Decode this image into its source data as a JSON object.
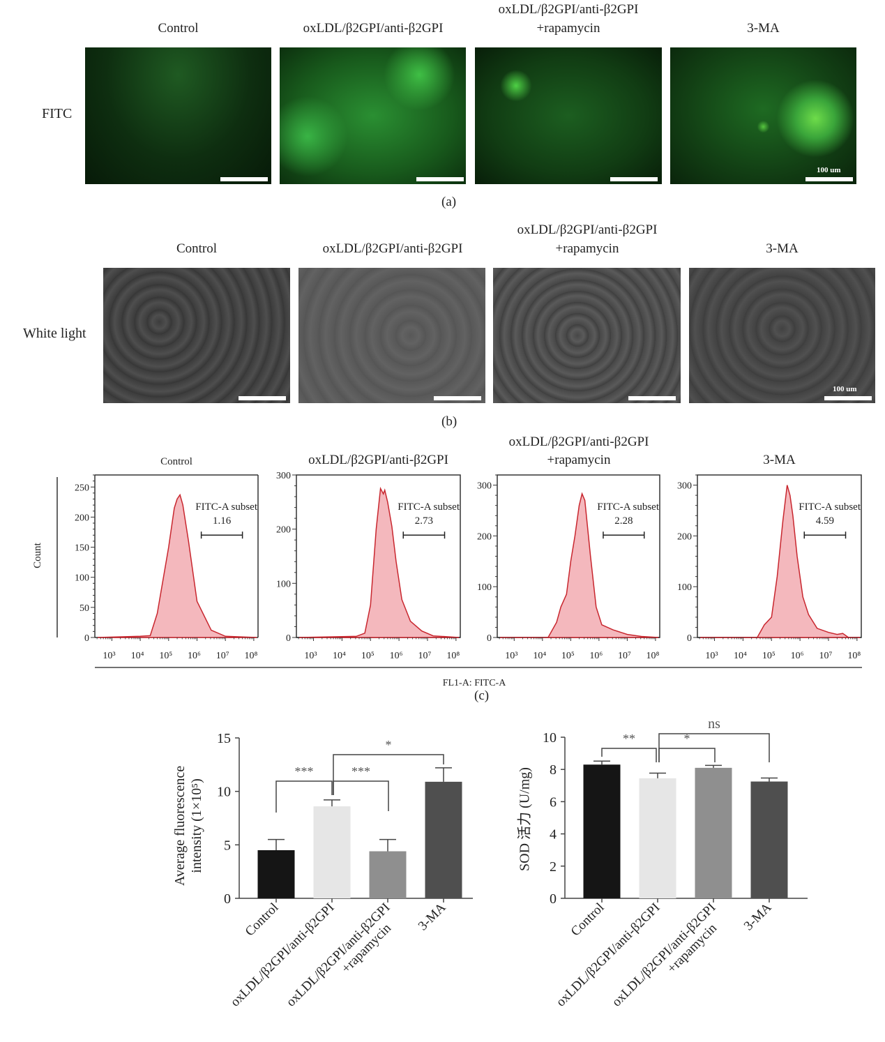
{
  "groups": [
    "Control",
    "oxLDL/β2GPI/anti-β2GPI",
    "oxLDL/β2GPI/anti-β2GPI\n+rapamycin",
    "3-MA"
  ],
  "group_line1": [
    "Control",
    "oxLDL/β2GPI/anti-β2GPI",
    "oxLDL/β2GPI/anti-β2GPI",
    "3-MA"
  ],
  "group_line2": [
    "",
    "",
    "+rapamycin",
    ""
  ],
  "panel_a": {
    "letter": "(a)",
    "row_label": "FITC",
    "scale_label": "100 um",
    "image_color": "#1f8a2a"
  },
  "panel_b": {
    "letter": "(b)",
    "row_label": "White light",
    "scale_label": "100 um"
  },
  "panel_c": {
    "letter": "(c)",
    "ylabel": "Count",
    "xlabel": "FL1-A: FITC-A",
    "gate_label": "FITC-A subset",
    "fill_color": "#f4b8bd",
    "line_color": "#c8262e"
  },
  "panel_d": {
    "ylabel_line1": "Average fluorescence",
    "ylabel_line2": "intensity (1×10⁵)"
  },
  "panel_e": {
    "ylabel": "SOD 活力 (U/mg)"
  },
  "chart_data": [
    {
      "type": "area",
      "title": "Control",
      "xlabel": "FL1-A: FITC-A",
      "ylabel": "Count",
      "xscale": "log",
      "xticks": [
        "10³",
        "10⁴",
        "10⁵",
        "10⁶",
        "10⁷",
        "10⁸"
      ],
      "yticks": [
        0,
        50,
        100,
        150,
        200,
        250
      ],
      "ylim": [
        0,
        270
      ],
      "gate": {
        "label": "FITC-A subset",
        "value": "1.16",
        "range": [
          "1.4×10⁶",
          "4×10⁷"
        ]
      },
      "peak": {
        "x": "2×10⁵",
        "y": 237
      },
      "x_log": [
        2.5,
        4.0,
        4.35,
        4.6,
        5.0,
        5.2,
        5.3,
        5.4,
        5.5,
        5.7,
        6.0,
        6.5,
        7.0,
        8.1
      ],
      "y": [
        0,
        2,
        3,
        40,
        150,
        215,
        230,
        237,
        220,
        160,
        60,
        12,
        2,
        0
      ]
    },
    {
      "type": "area",
      "title": "oxLDL/β2GPI/anti-β2GPI",
      "xlabel": "FL1-A: FITC-A",
      "ylabel": "Count",
      "xscale": "log",
      "xticks": [
        "10³",
        "10⁴",
        "10⁵",
        "10⁶",
        "10⁷",
        "10⁸"
      ],
      "yticks": [
        0,
        100,
        200,
        300
      ],
      "ylim": [
        0,
        300
      ],
      "gate": {
        "label": "FITC-A subset",
        "value": "2.73",
        "range": [
          "1.4×10⁶",
          "4×10⁷"
        ]
      },
      "peak": {
        "x": "2.5×10⁵",
        "y": 275
      },
      "x_log": [
        2.5,
        4.5,
        4.8,
        5.0,
        5.2,
        5.35,
        5.45,
        5.5,
        5.6,
        5.75,
        5.9,
        6.1,
        6.4,
        6.8,
        7.2,
        8.1
      ],
      "y": [
        0,
        2,
        8,
        60,
        200,
        275,
        265,
        272,
        250,
        205,
        140,
        70,
        30,
        12,
        3,
        0
      ]
    },
    {
      "type": "area",
      "title": "oxLDL/β2GPI/anti-β2GPI +rapamycin",
      "xlabel": "FL1-A: FITC-A",
      "ylabel": "Count",
      "xscale": "log",
      "xticks": [
        "10³",
        "10⁴",
        "10⁵",
        "10⁶",
        "10⁷",
        "10⁸"
      ],
      "yticks": [
        0,
        100,
        200,
        300
      ],
      "ylim": [
        0,
        320
      ],
      "gate": {
        "label": "FITC-A subset",
        "value": "2.28",
        "range": [
          "1.4×10⁶",
          "4×10⁷"
        ]
      },
      "peak": {
        "x": "2.5×10⁵",
        "y": 283
      },
      "x_log": [
        2.5,
        4.2,
        4.5,
        4.65,
        4.85,
        5.0,
        5.15,
        5.3,
        5.4,
        5.5,
        5.7,
        5.9,
        6.1,
        6.5,
        7.0,
        7.5,
        8.1
      ],
      "y": [
        0,
        0,
        30,
        60,
        85,
        150,
        200,
        260,
        283,
        270,
        160,
        60,
        25,
        15,
        6,
        2,
        0
      ]
    },
    {
      "type": "area",
      "title": "3-MA",
      "xlabel": "FL1-A: FITC-A",
      "ylabel": "Count",
      "xscale": "log",
      "xticks": [
        "10³",
        "10⁴",
        "10⁵",
        "10⁶",
        "10⁷",
        "10⁸"
      ],
      "yticks": [
        0,
        100,
        200,
        300
      ],
      "ylim": [
        0,
        320
      ],
      "gate": {
        "label": "FITC-A subset",
        "value": "4.59",
        "range": [
          "1.4×10⁶",
          "4×10⁷"
        ]
      },
      "peak": {
        "x": "4×10⁵",
        "y": 302
      },
      "x_log": [
        2.5,
        4.5,
        4.75,
        5.0,
        5.2,
        5.4,
        5.55,
        5.65,
        5.75,
        5.9,
        6.1,
        6.3,
        6.6,
        7.0,
        7.3,
        7.5,
        7.7,
        8.1
      ],
      "y": [
        0,
        0,
        25,
        40,
        120,
        230,
        300,
        280,
        240,
        160,
        80,
        45,
        18,
        10,
        6,
        8,
        0,
        0
      ]
    },
    {
      "type": "bar",
      "title": "",
      "categories": [
        "Control",
        "oxLDL/β2GPI/anti-β2GPI",
        "oxLDL/β2GPI/anti-β2GPI +rapamycin",
        "3-MA"
      ],
      "values": [
        4.5,
        8.6,
        4.4,
        10.9
      ],
      "errors": [
        1.0,
        0.6,
        1.1,
        1.3
      ],
      "colors": [
        "#151515",
        "#e6e6e6",
        "#8f8f8f",
        "#4f4f4f"
      ],
      "xlabel": "",
      "ylabel": "Average fluorescence intensity (1×10⁵)",
      "ylim": [
        0,
        15
      ],
      "yticks": [
        0,
        5,
        10,
        15
      ],
      "significance": [
        {
          "from": 0,
          "to": 1,
          "label": "***"
        },
        {
          "from": 1,
          "to": 2,
          "label": "***"
        },
        {
          "from": 1,
          "to": 3,
          "label": "*"
        }
      ]
    },
    {
      "type": "bar",
      "title": "",
      "categories": [
        "Control",
        "oxLDL/β2GPI/anti-β2GPI",
        "oxLDL/β2GPI/anti-β2GPI +rapamycin",
        "3-MA"
      ],
      "values": [
        8.3,
        7.45,
        8.1,
        7.25
      ],
      "errors": [
        0.22,
        0.32,
        0.15,
        0.22
      ],
      "colors": [
        "#151515",
        "#e6e6e6",
        "#8f8f8f",
        "#4f4f4f"
      ],
      "xlabel": "",
      "ylabel": "SOD 活力 (U/mg)",
      "ylim": [
        0,
        10
      ],
      "yticks": [
        0,
        2,
        4,
        6,
        8,
        10
      ],
      "significance": [
        {
          "from": 0,
          "to": 1,
          "label": "**"
        },
        {
          "from": 1,
          "to": 2,
          "label": "*"
        },
        {
          "from": 1,
          "to": 3,
          "label": "ns"
        }
      ]
    }
  ]
}
